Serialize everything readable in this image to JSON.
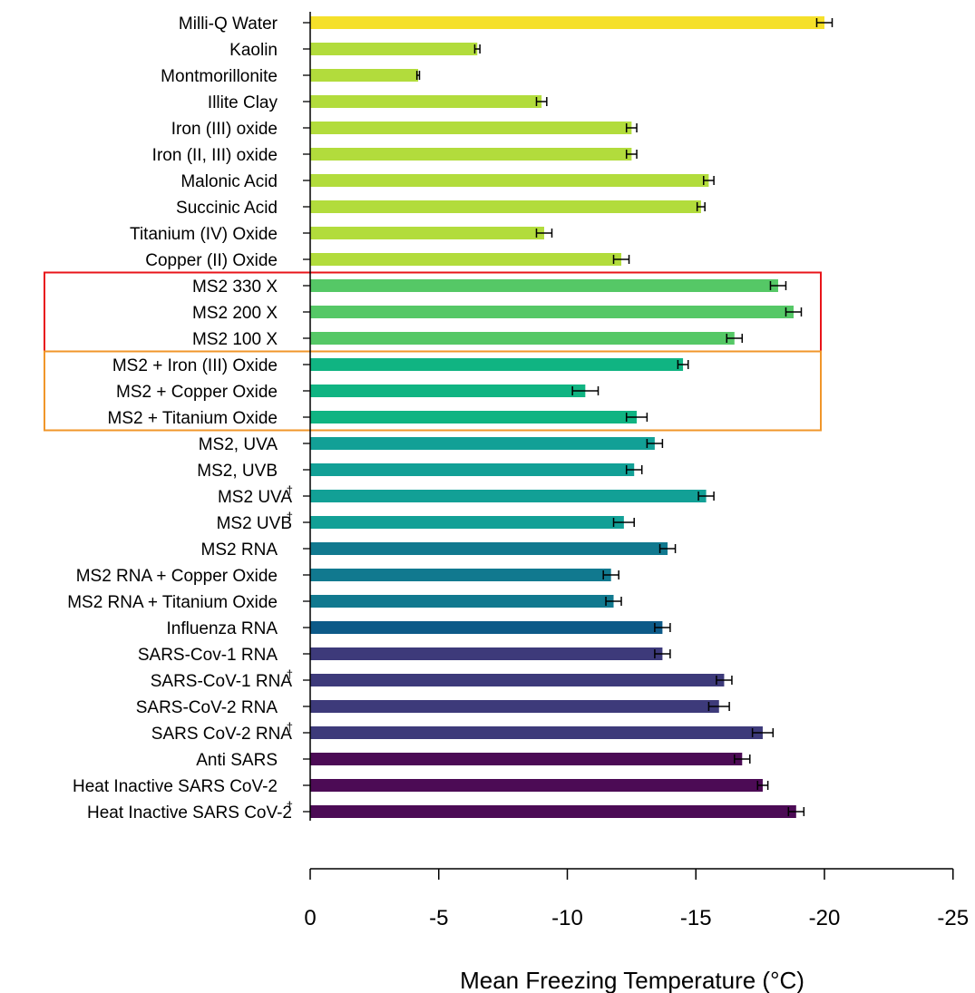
{
  "chart_data": {
    "type": "bar",
    "orientation": "horizontal",
    "xlabel": "Mean Freezing Temperature (°C)",
    "xlim": [
      0,
      -25
    ],
    "xticks": [
      0,
      -5,
      -10,
      -15,
      -20,
      -25
    ],
    "xtick_labels": [
      "0",
      "-5",
      "-10",
      "-15",
      "-20",
      "-25"
    ],
    "grid": false,
    "categories": [
      {
        "label": "Milli-Q Water",
        "dagger": false,
        "value": -20.0,
        "error": 0.3,
        "color": "#f5e02a"
      },
      {
        "label": "Kaolin",
        "dagger": false,
        "value": -6.5,
        "error": 0.1,
        "color": "#b2dc3c"
      },
      {
        "label": "Montmorillonite",
        "dagger": false,
        "value": -4.2,
        "error": 0.05,
        "color": "#b2dc3c"
      },
      {
        "label": "Illite Clay",
        "dagger": false,
        "value": -9.0,
        "error": 0.2,
        "color": "#b2dc3c"
      },
      {
        "label": "Iron (III) oxide",
        "dagger": false,
        "value": -12.5,
        "error": 0.2,
        "color": "#b2dc3c"
      },
      {
        "label": "Iron (II, III) oxide",
        "dagger": false,
        "value": -12.5,
        "error": 0.2,
        "color": "#b2dc3c"
      },
      {
        "label": "Malonic Acid",
        "dagger": false,
        "value": -15.5,
        "error": 0.2,
        "color": "#b2dc3c"
      },
      {
        "label": "Succinic Acid",
        "dagger": false,
        "value": -15.2,
        "error": 0.15,
        "color": "#b2dc3c"
      },
      {
        "label": "Titanium (IV) Oxide",
        "dagger": false,
        "value": -9.1,
        "error": 0.3,
        "color": "#b2dc3c"
      },
      {
        "label": "Copper (II) Oxide",
        "dagger": false,
        "value": -12.1,
        "error": 0.3,
        "color": "#b2dc3c"
      },
      {
        "label": "MS2 330 X",
        "dagger": false,
        "value": -18.2,
        "error": 0.3,
        "color": "#55c866"
      },
      {
        "label": "MS2 200 X",
        "dagger": false,
        "value": -18.8,
        "error": 0.3,
        "color": "#55c866"
      },
      {
        "label": "MS2 100 X",
        "dagger": false,
        "value": -16.5,
        "error": 0.3,
        "color": "#55c866"
      },
      {
        "label": "MS2 + Iron (III) Oxide",
        "dagger": false,
        "value": -14.5,
        "error": 0.2,
        "color": "#10b482"
      },
      {
        "label": "MS2 + Copper Oxide",
        "dagger": false,
        "value": -10.7,
        "error": 0.5,
        "color": "#10b482"
      },
      {
        "label": "MS2 + Titanium Oxide",
        "dagger": false,
        "value": -12.7,
        "error": 0.4,
        "color": "#10b482"
      },
      {
        "label": "MS2, UVA",
        "dagger": false,
        "value": -13.4,
        "error": 0.3,
        "color": "#12a096"
      },
      {
        "label": "MS2, UVB",
        "dagger": false,
        "value": -12.6,
        "error": 0.3,
        "color": "#12a096"
      },
      {
        "label": "MS2 UVA",
        "dagger": true,
        "value": -15.4,
        "error": 0.3,
        "color": "#12a096"
      },
      {
        "label": "MS2 UVB",
        "dagger": true,
        "value": -12.2,
        "error": 0.4,
        "color": "#12a096"
      },
      {
        "label": "MS2 RNA",
        "dagger": false,
        "value": -13.9,
        "error": 0.3,
        "color": "#11798f"
      },
      {
        "label": "MS2 RNA + Copper Oxide",
        "dagger": false,
        "value": -11.7,
        "error": 0.3,
        "color": "#11798f"
      },
      {
        "label": "MS2 RNA + Titanium Oxide",
        "dagger": false,
        "value": -11.8,
        "error": 0.3,
        "color": "#11798f"
      },
      {
        "label": "Influenza RNA",
        "dagger": false,
        "value": -13.7,
        "error": 0.3,
        "color": "#0d5a88"
      },
      {
        "label": "SARS-Cov-1 RNA",
        "dagger": false,
        "value": -13.7,
        "error": 0.3,
        "color": "#3d3a7a"
      },
      {
        "label": "SARS-CoV-1 RNA",
        "dagger": true,
        "value": -16.1,
        "error": 0.3,
        "color": "#3d3a7a"
      },
      {
        "label": "SARS-CoV-2 RNA",
        "dagger": false,
        "value": -15.9,
        "error": 0.4,
        "color": "#3d3a7a"
      },
      {
        "label": "SARS CoV-2 RNA",
        "dagger": true,
        "value": -17.6,
        "error": 0.4,
        "color": "#3d3a7a"
      },
      {
        "label": "Anti SARS",
        "dagger": false,
        "value": -16.8,
        "error": 0.3,
        "color": "#4c0b55"
      },
      {
        "label": "Heat Inactive SARS CoV-2",
        "dagger": false,
        "value": -17.6,
        "error": 0.2,
        "color": "#4c0b55"
      },
      {
        "label": "Heat Inactive SARS CoV-2",
        "dagger": true,
        "value": -18.9,
        "error": 0.3,
        "color": "#4c0b55"
      }
    ],
    "highlight_boxes": [
      {
        "first_category": 10,
        "last_category": 12,
        "color": "#e8141a"
      },
      {
        "first_category": 13,
        "last_category": 15,
        "color": "#f0962a"
      }
    ]
  }
}
